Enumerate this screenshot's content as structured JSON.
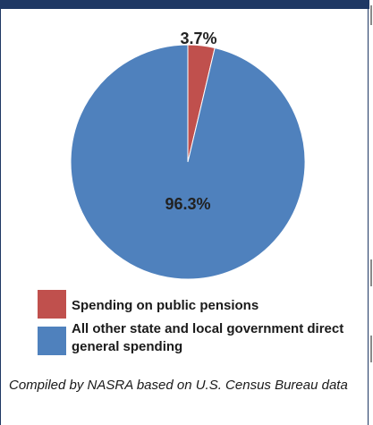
{
  "chart_data": {
    "type": "pie",
    "title": "",
    "slices": [
      {
        "name": "Spending on public pensions",
        "value": 3.7,
        "label": "3.7%",
        "color": "#c0504d"
      },
      {
        "name": "All other state and local government direct general spending",
        "value": 96.3,
        "label": "96.3%",
        "color": "#4f81bd"
      }
    ],
    "legend": {
      "placement": "bottom",
      "entries": [
        {
          "label": "Spending on public pensions",
          "color": "#c0504d"
        },
        {
          "label": "All other state and local government direct general spending",
          "color": "#4f81bd"
        }
      ]
    }
  },
  "caption": "Compiled by NASRA based on U.S. Census Bureau data",
  "colors": {
    "frame": "#1f3864",
    "pensions": "#c0504d",
    "other": "#4f81bd"
  }
}
